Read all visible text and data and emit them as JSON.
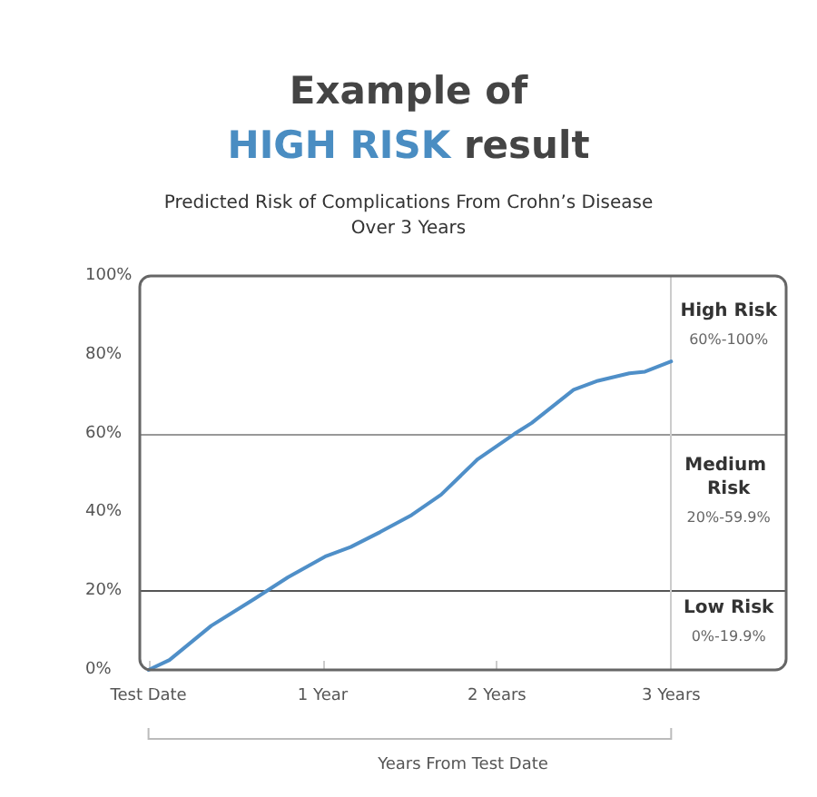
{
  "chart_data": {
    "type": "line",
    "title": "Example of HIGH RISK result",
    "subtitle": "Predicted Risk of Complications From Crohn’s Disease Over 3 Years",
    "xlabel": "Years From Test Date",
    "x": [
      0,
      0.12,
      0.36,
      0.61,
      0.8,
      1.02,
      1.16,
      1.33,
      1.51,
      1.68,
      1.89,
      2.1,
      2.2,
      2.44,
      2.58,
      2.76,
      2.85,
      3.0
    ],
    "series": [
      {
        "color": "#4f8fc8",
        "values": [
          0,
          2.5,
          11.2,
          18.1,
          23.5,
          28.9,
          31.2,
          35,
          39.3,
          44.5,
          53.5,
          59.9,
          62.7,
          71.1,
          73.4,
          75.3,
          75.7,
          78.3
        ]
      }
    ],
    "xlim": [
      -0.05,
      3.66
    ],
    "xticks": [
      {
        "value": 0,
        "label": "Test Date"
      },
      {
        "value": 1,
        "label": "1 Year"
      },
      {
        "value": 2,
        "label": "2 Years"
      },
      {
        "value": 3,
        "label": "3 Years"
      }
    ],
    "ylim": [
      0,
      100
    ],
    "yticks": [
      {
        "value": 0,
        "label": "0%"
      },
      {
        "value": 20,
        "label": "20%"
      },
      {
        "value": 40,
        "label": "40%"
      },
      {
        "value": 60,
        "label": "60%"
      },
      {
        "value": 80,
        "label": "80%"
      },
      {
        "value": 100,
        "label": "100%"
      }
    ],
    "ref_lines": [
      {
        "axis": "y",
        "value": 20,
        "color": "#555555"
      },
      {
        "axis": "y",
        "value": 60,
        "color": "#999999"
      },
      {
        "axis": "x",
        "value": 3,
        "color": "#cccccc"
      }
    ],
    "annotations": [
      "High Risk",
      "60%-100%",
      "Medium Risk",
      "20%-59.9%",
      "Low Risk",
      "0%-19.9%"
    ],
    "grid": false,
    "marker": "none",
    "line_style": "solid"
  }
}
